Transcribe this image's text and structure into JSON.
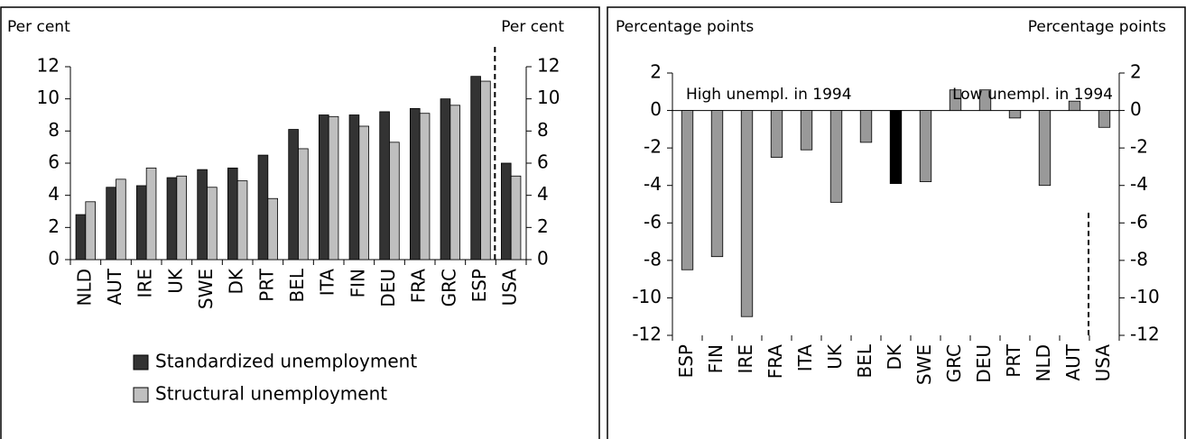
{
  "chart_data": [
    {
      "type": "bar",
      "ylabel": "Per cent",
      "y2label": "Per cent",
      "categories": [
        "NLD",
        "AUT",
        "IRE",
        "UK",
        "SWE",
        "DK",
        "PRT",
        "BEL",
        "ITA",
        "FIN",
        "DEU",
        "FRA",
        "GRC",
        "ESP",
        "USA"
      ],
      "series": [
        {
          "name": "Standardized unemployment",
          "color": "#333333",
          "values": [
            2.8,
            4.5,
            4.6,
            5.1,
            5.6,
            5.7,
            6.5,
            8.1,
            9.0,
            9.0,
            9.2,
            9.4,
            10.0,
            11.4,
            6.0
          ]
        },
        {
          "name": "Structural unemployment",
          "color": "#bfbfbf",
          "values": [
            3.6,
            5.0,
            5.7,
            5.2,
            4.5,
            4.9,
            3.8,
            6.9,
            8.9,
            8.3,
            7.3,
            9.1,
            9.6,
            11.1,
            5.2
          ]
        }
      ],
      "ylim": [
        0,
        12
      ],
      "yticks": [
        0,
        2,
        4,
        6,
        8,
        10,
        12
      ],
      "y2lim": [
        0,
        12
      ],
      "y2ticks": [
        0,
        2,
        4,
        6,
        8,
        10,
        12
      ],
      "separator_before_index": 14,
      "legend": "bottom"
    },
    {
      "type": "bar",
      "ylabel": "Percentage points",
      "y2label": "Percentage points",
      "annotations": [
        "High unempl. in 1994",
        "Low unempl. in 1994"
      ],
      "categories": [
        "ESP",
        "FIN",
        "IRE",
        "FRA",
        "ITA",
        "UK",
        "BEL",
        "DK",
        "SWE",
        "GRC",
        "DEU",
        "PRT",
        "NLD",
        "AUT",
        "USA"
      ],
      "values": [
        -8.5,
        -7.8,
        -11.0,
        -2.5,
        -2.1,
        -4.9,
        -1.7,
        -3.9,
        -3.8,
        1.1,
        1.1,
        -0.4,
        -4.0,
        0.5,
        -0.9
      ],
      "colors": [
        "#999999",
        "#999999",
        "#999999",
        "#999999",
        "#999999",
        "#999999",
        "#999999",
        "#000000",
        "#999999",
        "#999999",
        "#999999",
        "#999999",
        "#999999",
        "#999999",
        "#999999"
      ],
      "ylim": [
        -12,
        2
      ],
      "yticks": [
        -12,
        -10,
        -8,
        -6,
        -4,
        -2,
        0,
        2
      ],
      "y2lim": [
        -12,
        2
      ],
      "y2ticks": [
        -12,
        -10,
        -8,
        -6,
        -4,
        -2,
        0,
        2
      ],
      "separator_before_index": 14
    }
  ]
}
